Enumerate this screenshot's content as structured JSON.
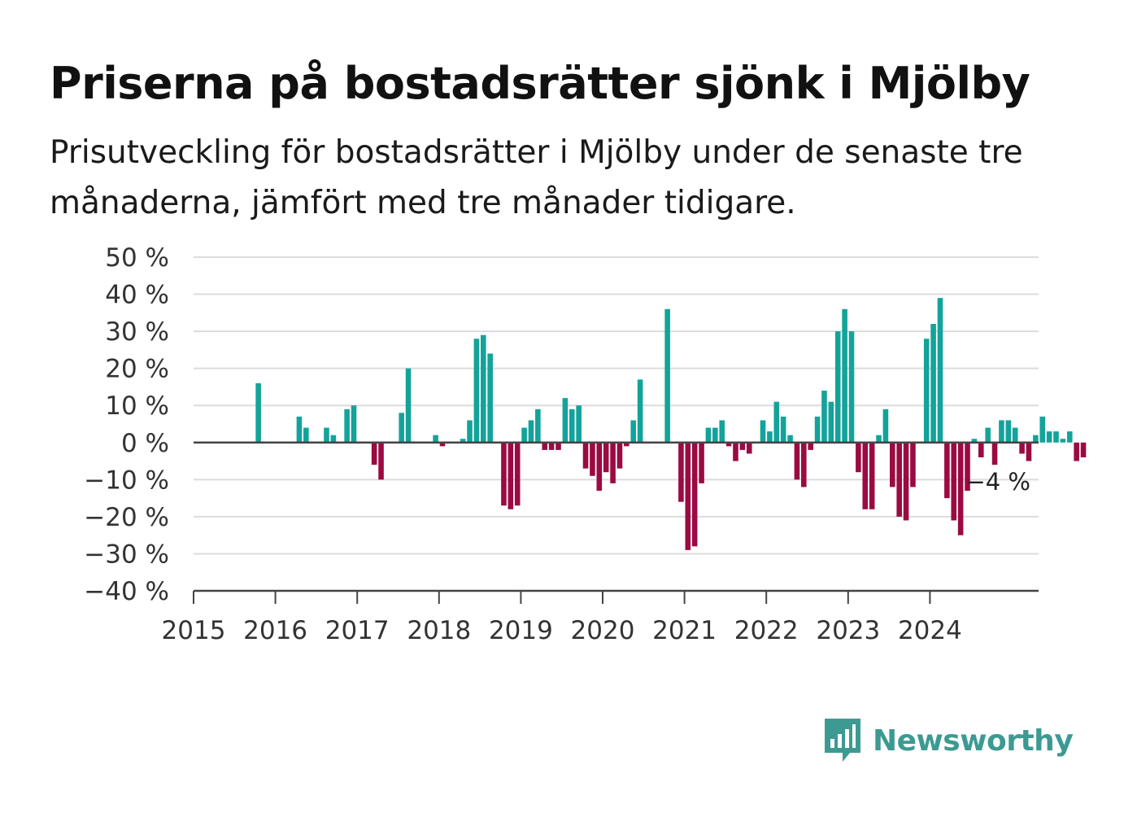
{
  "title": "Priserna på bostadsrätter sjönk i Mjölby",
  "subtitle": "Prisutveckling för bostadsrätter i Mjölby under de senaste tre månaderna, jämfört med tre månader tidigare.",
  "brand": {
    "name": "Newsworthy",
    "color": "#3d9a93",
    "icon": "newsworthy-logo-icon"
  },
  "colors": {
    "positive": "#13a39a",
    "negative": "#9b0a42",
    "grid": "#dcdcdc",
    "axis": "#444444"
  },
  "chart_data": {
    "type": "bar",
    "ylabel": "",
    "xlabel": "",
    "ylim": [
      -40,
      50
    ],
    "yticks": [
      50,
      40,
      30,
      20,
      10,
      0,
      -10,
      -20,
      -30,
      -40
    ],
    "ytick_labels": [
      "50 %",
      "40 %",
      "30 %",
      "20 %",
      "10 %",
      "0 %",
      "−10 %",
      "−20 %",
      "−30 %",
      "−40 %"
    ],
    "xticks": [
      "2015",
      "2016",
      "2017",
      "2018",
      "2019",
      "2020",
      "2021",
      "2022",
      "2023",
      "2024"
    ],
    "x_start": "2015-01",
    "last_value_label": "−4 %",
    "grid": true,
    "series": [
      {
        "values": [
          null,
          null,
          null,
          null,
          null,
          null,
          null,
          null,
          null,
          16,
          null,
          null,
          null,
          null,
          null,
          7,
          4,
          null,
          null,
          4,
          2,
          null,
          9,
          10,
          null,
          null,
          -6,
          -10,
          null,
          null,
          8,
          20,
          null,
          null,
          null,
          2,
          -1,
          null,
          null,
          1,
          6,
          28,
          29,
          24,
          null,
          -17,
          -18,
          -17,
          4,
          6,
          9,
          -2,
          -2,
          -2,
          12,
          9,
          10,
          -7,
          -9,
          -13,
          -8,
          -11,
          -7,
          -1,
          6,
          17,
          null,
          null,
          null,
          36,
          null,
          -16,
          -29,
          -28,
          -11,
          4,
          4,
          6,
          -1,
          -5,
          -2,
          -3,
          null,
          6,
          3,
          11,
          7,
          2,
          -10,
          -12,
          -2,
          7,
          14,
          11,
          30,
          36,
          30,
          -8,
          -18,
          -18,
          2,
          9,
          -12,
          -20,
          -21,
          -12,
          null,
          28,
          32,
          39,
          -15,
          -21,
          -25,
          -13,
          1,
          -4,
          4,
          -6,
          6,
          6,
          4,
          -3,
          -5,
          2,
          7,
          3,
          3,
          1,
          3,
          -5,
          -4
        ]
      }
    ]
  }
}
